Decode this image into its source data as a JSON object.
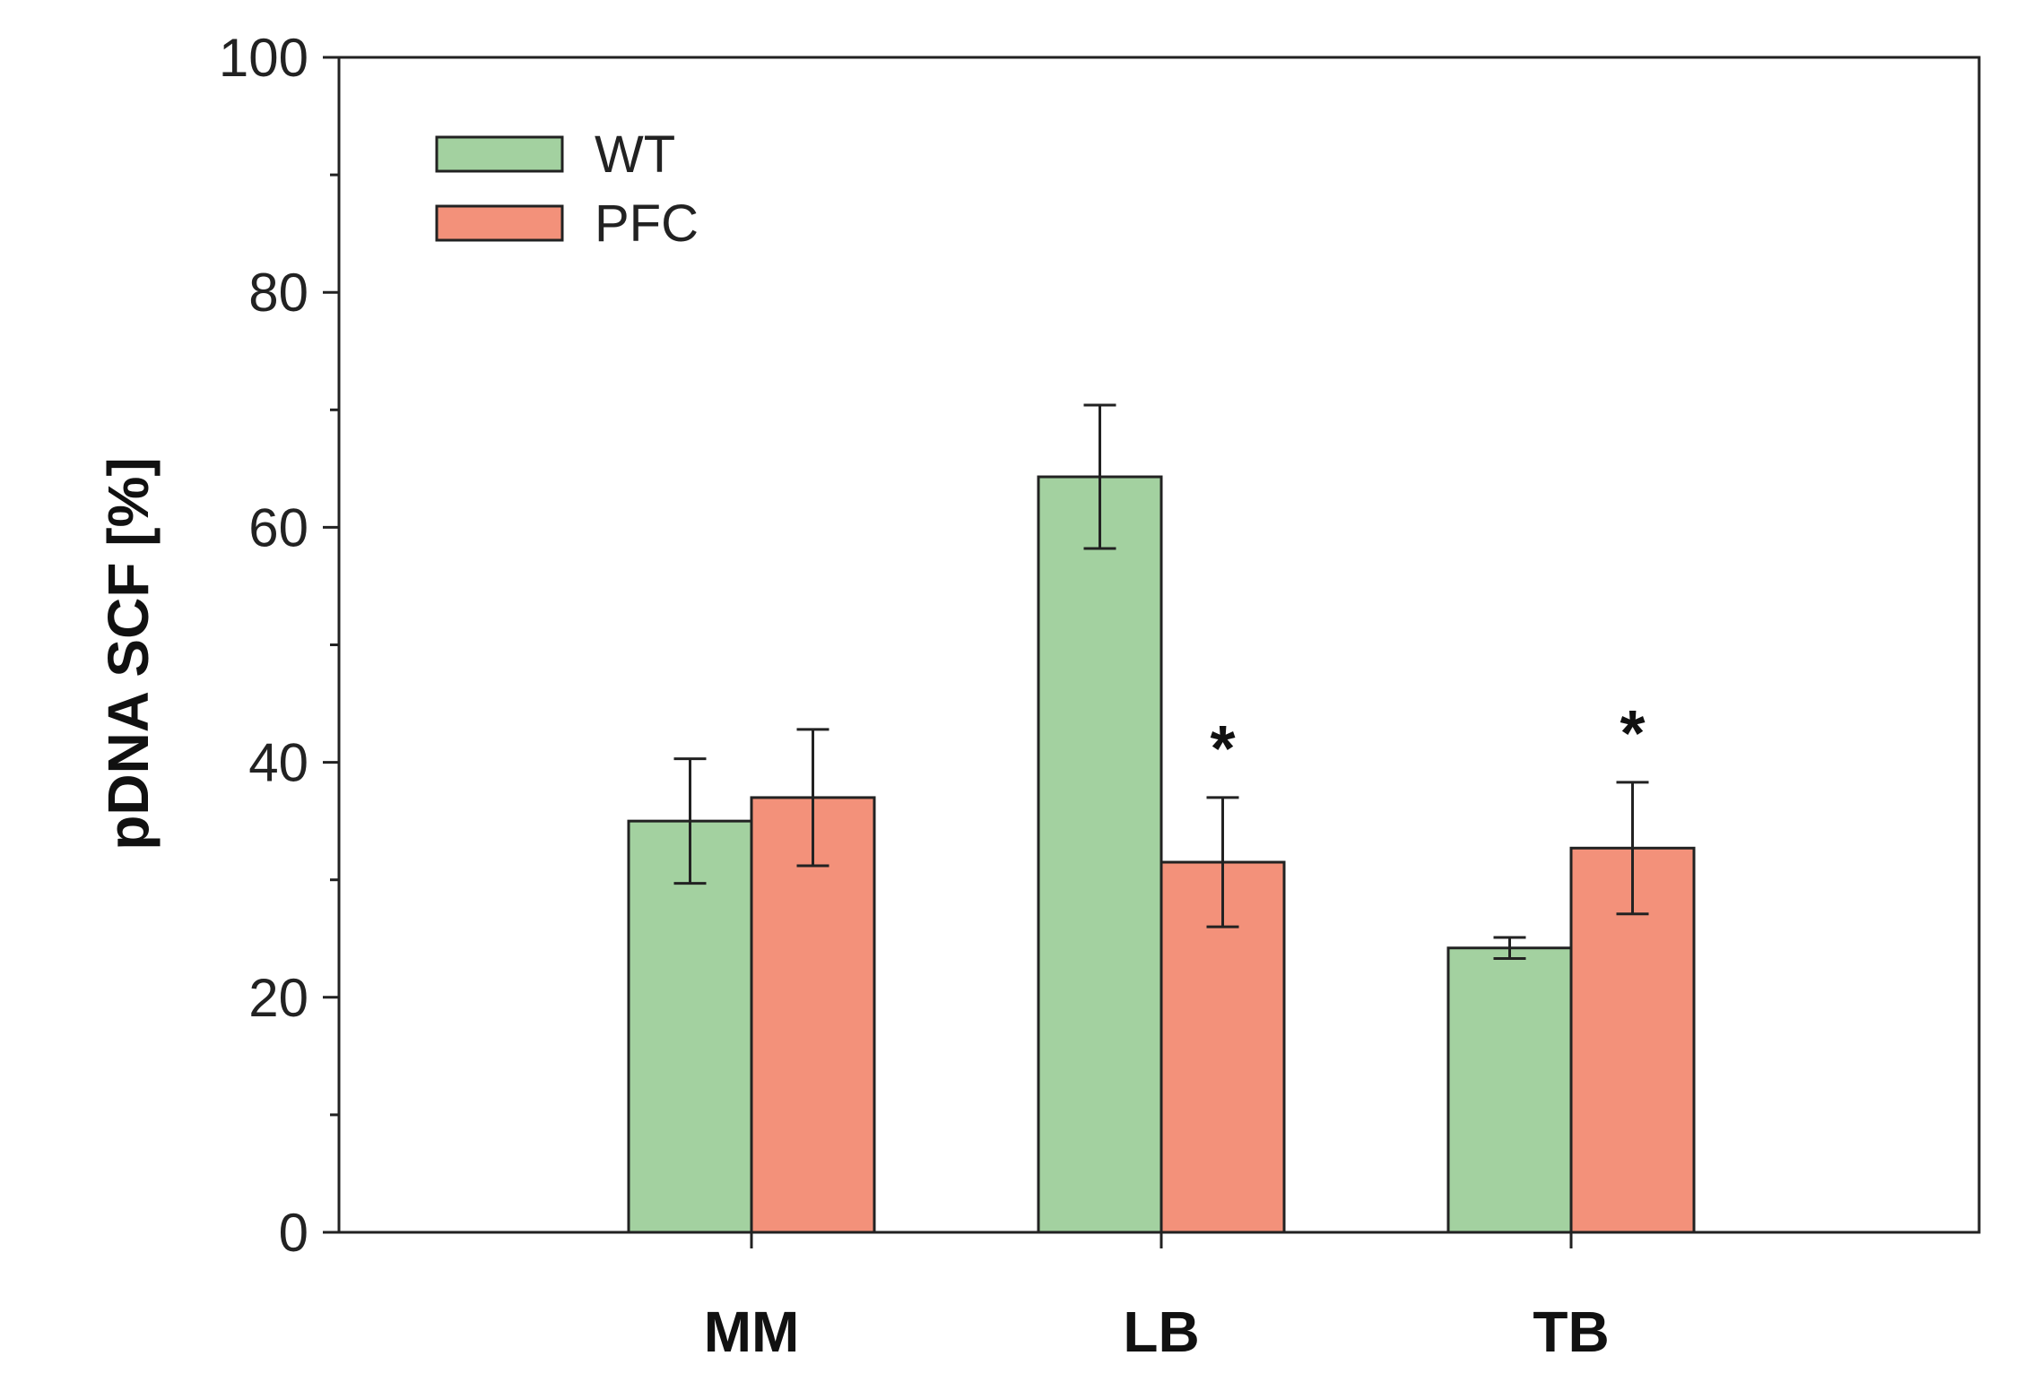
{
  "chart_data": {
    "type": "bar",
    "title": "",
    "xlabel": "",
    "ylabel": "pDNA SCF [%]",
    "ylim": [
      0,
      100
    ],
    "yticks": [
      0,
      20,
      40,
      60,
      80,
      100
    ],
    "y_minor_step": 10,
    "categories": [
      "MM",
      "LB",
      "TB"
    ],
    "series": [
      {
        "name": "WT",
        "color": "#a3d1a0",
        "values": [
          35.0,
          64.3,
          24.2
        ],
        "errors": [
          5.3,
          6.1,
          0.9
        ]
      },
      {
        "name": "PFC",
        "color": "#f3917a",
        "values": [
          37.0,
          31.5,
          32.7
        ],
        "errors": [
          5.8,
          5.5,
          5.6
        ]
      }
    ],
    "annotations": [
      {
        "category": "LB",
        "series": "PFC",
        "text": "*"
      },
      {
        "category": "TB",
        "series": "PFC",
        "text": "*"
      }
    ],
    "legend_position": "top-left",
    "grid": false
  }
}
